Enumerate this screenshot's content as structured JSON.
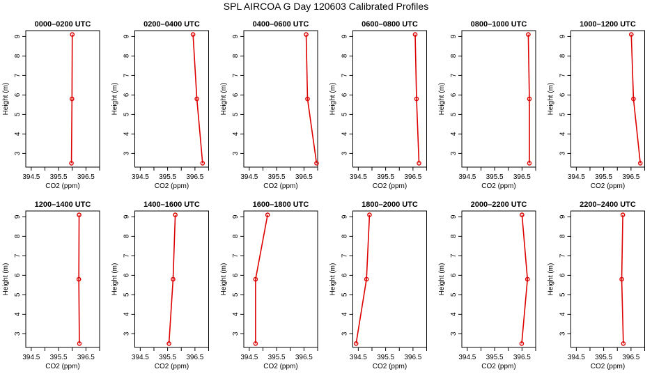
{
  "title": "SPL AIRCOA G  Day 120603  Calibrated Profiles",
  "chart_data": [
    {
      "type": "line",
      "title": "0000–0200 UTC",
      "xlabel": "CO2 (ppm)",
      "ylabel": "Height (m)",
      "xlim": [
        394.3,
        397.0
      ],
      "ylim": [
        2.3,
        9.3
      ],
      "x_ticks": [
        "394.5",
        "395.5",
        "396.5"
      ],
      "y_ticks": [
        "3",
        "4",
        "5",
        "6",
        "7",
        "8",
        "9"
      ],
      "series": [
        {
          "x": [
            396.0,
            395.99,
            395.97
          ],
          "y": [
            9.1,
            5.8,
            2.5
          ]
        }
      ]
    },
    {
      "type": "line",
      "title": "0200–0400 UTC",
      "xlabel": "CO2 (ppm)",
      "ylabel": "Height (m)",
      "xlim": [
        394.3,
        397.0
      ],
      "ylim": [
        2.3,
        9.3
      ],
      "x_ticks": [
        "394.5",
        "395.5",
        "396.5"
      ],
      "y_ticks": [
        "3",
        "4",
        "5",
        "6",
        "7",
        "8",
        "9"
      ],
      "series": [
        {
          "x": [
            396.43,
            396.57,
            396.78
          ],
          "y": [
            9.1,
            5.8,
            2.5
          ]
        }
      ]
    },
    {
      "type": "line",
      "title": "0400–0600 UTC",
      "xlabel": "CO2 (ppm)",
      "ylabel": "Height (m)",
      "xlim": [
        394.3,
        397.0
      ],
      "ylim": [
        2.3,
        9.3
      ],
      "x_ticks": [
        "394.5",
        "395.5",
        "396.5"
      ],
      "y_ticks": [
        "3",
        "4",
        "5",
        "6",
        "7",
        "8",
        "9"
      ],
      "series": [
        {
          "x": [
            396.58,
            396.63,
            396.96
          ],
          "y": [
            9.1,
            5.8,
            2.5
          ]
        }
      ]
    },
    {
      "type": "line",
      "title": "0600–0800 UTC",
      "xlabel": "CO2 (ppm)",
      "ylabel": "Height (m)",
      "xlim": [
        394.3,
        397.0
      ],
      "ylim": [
        2.3,
        9.3
      ],
      "x_ticks": [
        "394.5",
        "395.5",
        "396.5"
      ],
      "y_ticks": [
        "3",
        "4",
        "5",
        "6",
        "7",
        "8",
        "9"
      ],
      "series": [
        {
          "x": [
            396.58,
            396.63,
            396.72
          ],
          "y": [
            9.1,
            5.8,
            2.5
          ]
        }
      ]
    },
    {
      "type": "line",
      "title": "0800–1000 UTC",
      "xlabel": "CO2 (ppm)",
      "ylabel": "Height (m)",
      "xlim": [
        394.3,
        397.0
      ],
      "ylim": [
        2.3,
        9.3
      ],
      "x_ticks": [
        "394.5",
        "395.5",
        "396.5"
      ],
      "y_ticks": [
        "3",
        "4",
        "5",
        "6",
        "7",
        "8",
        "9"
      ],
      "series": [
        {
          "x": [
            396.73,
            396.77,
            396.77
          ],
          "y": [
            9.1,
            5.8,
            2.5
          ]
        }
      ]
    },
    {
      "type": "line",
      "title": "1000–1200 UTC",
      "xlabel": "CO2 (ppm)",
      "ylabel": "Height (m)",
      "xlim": [
        394.3,
        397.0
      ],
      "ylim": [
        2.3,
        9.3
      ],
      "x_ticks": [
        "394.5",
        "395.5",
        "396.5"
      ],
      "y_ticks": [
        "3",
        "4",
        "5",
        "6",
        "7",
        "8",
        "9"
      ],
      "series": [
        {
          "x": [
            396.51,
            396.59,
            396.84
          ],
          "y": [
            9.1,
            5.8,
            2.5
          ]
        }
      ]
    },
    {
      "type": "line",
      "title": "1200–1400 UTC",
      "xlabel": "CO2 (ppm)",
      "ylabel": "Height (m)",
      "xlim": [
        394.3,
        397.0
      ],
      "ylim": [
        2.3,
        9.3
      ],
      "x_ticks": [
        "394.5",
        "395.5",
        "396.5"
      ],
      "y_ticks": [
        "3",
        "4",
        "5",
        "6",
        "7",
        "8",
        "9"
      ],
      "series": [
        {
          "x": [
            396.25,
            396.24,
            396.26
          ],
          "y": [
            9.1,
            5.8,
            2.5
          ]
        }
      ]
    },
    {
      "type": "line",
      "title": "1400–1600 UTC",
      "xlabel": "CO2 (ppm)",
      "ylabel": "Height (m)",
      "xlim": [
        394.3,
        397.0
      ],
      "ylim": [
        2.3,
        9.3
      ],
      "x_ticks": [
        "394.5",
        "395.5",
        "396.5"
      ],
      "y_ticks": [
        "3",
        "4",
        "5",
        "6",
        "7",
        "8",
        "9"
      ],
      "series": [
        {
          "x": [
            395.78,
            395.7,
            395.55
          ],
          "y": [
            9.1,
            5.8,
            2.5
          ]
        }
      ]
    },
    {
      "type": "line",
      "title": "1600–1800 UTC",
      "xlabel": "CO2 (ppm)",
      "ylabel": "Height (m)",
      "xlim": [
        394.3,
        397.0
      ],
      "ylim": [
        2.3,
        9.3
      ],
      "x_ticks": [
        "394.5",
        "395.5",
        "396.5"
      ],
      "y_ticks": [
        "3",
        "4",
        "5",
        "6",
        "7",
        "8",
        "9"
      ],
      "series": [
        {
          "x": [
            395.17,
            394.73,
            394.73
          ],
          "y": [
            9.1,
            5.8,
            2.5
          ]
        }
      ]
    },
    {
      "type": "line",
      "title": "1800–2000 UTC",
      "xlabel": "CO2 (ppm)",
      "ylabel": "Height (m)",
      "xlim": [
        394.3,
        397.0
      ],
      "ylim": [
        2.3,
        9.3
      ],
      "x_ticks": [
        "394.5",
        "395.5",
        "396.5"
      ],
      "y_ticks": [
        "3",
        "4",
        "5",
        "6",
        "7",
        "8",
        "9"
      ],
      "series": [
        {
          "x": [
            394.91,
            394.8,
            394.42
          ],
          "y": [
            9.1,
            5.8,
            2.5
          ]
        }
      ]
    },
    {
      "type": "line",
      "title": "2000–2200 UTC",
      "xlabel": "CO2 (ppm)",
      "ylabel": "Height (m)",
      "xlim": [
        394.3,
        397.0
      ],
      "ylim": [
        2.3,
        9.3
      ],
      "x_ticks": [
        "394.5",
        "395.5",
        "396.5"
      ],
      "y_ticks": [
        "3",
        "4",
        "5",
        "6",
        "7",
        "8",
        "9"
      ],
      "series": [
        {
          "x": [
            396.5,
            396.7,
            396.49
          ],
          "y": [
            9.1,
            5.8,
            2.5
          ]
        }
      ]
    },
    {
      "type": "line",
      "title": "2200–2400 UTC",
      "xlabel": "CO2 (ppm)",
      "ylabel": "Height (m)",
      "xlim": [
        394.3,
        397.0
      ],
      "ylim": [
        2.3,
        9.3
      ],
      "x_ticks": [
        "394.5",
        "395.5",
        "396.5"
      ],
      "y_ticks": [
        "3",
        "4",
        "5",
        "6",
        "7",
        "8",
        "9"
      ],
      "series": [
        {
          "x": [
            396.2,
            396.16,
            396.22
          ],
          "y": [
            9.1,
            5.8,
            2.5
          ]
        }
      ]
    }
  ],
  "colors": {
    "line": "#dd0000",
    "marker": "#dd0000",
    "axis": "#000000"
  }
}
